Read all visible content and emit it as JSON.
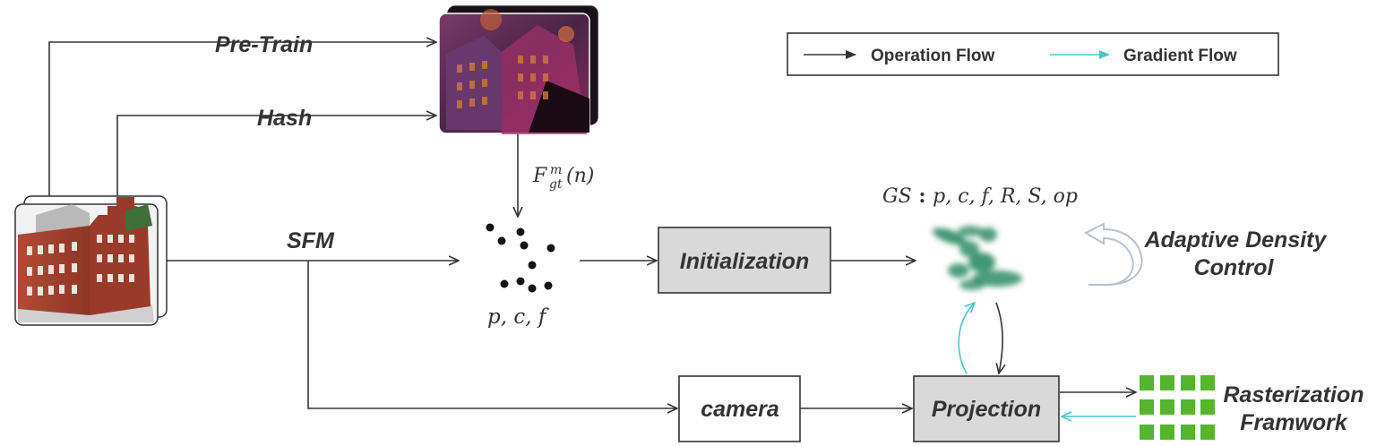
{
  "legend": {
    "operation_flow": "Operation  Flow",
    "gradient_flow": "Gradient  Flow"
  },
  "edge_labels": {
    "pre_train": "Pre-Train",
    "hash": "Hash",
    "sfm": "SFM",
    "feature_map": "F",
    "feature_map_sup": "m",
    "feature_map_sub": "gt",
    "feature_map_arg": "(n)"
  },
  "nodes": {
    "points_label": "p, c, f",
    "initialization": "Initialization",
    "gs_prefix": "GS",
    "gs_sep": " : ",
    "gs_params": "p, c, f, R, S, op",
    "adaptive_line1": "Adaptive Density",
    "adaptive_line2": "Control",
    "camera": "camera",
    "projection": "Projection",
    "raster_line1": "Rasterization",
    "raster_line2": "Framwork"
  },
  "colors": {
    "operation_flow": "#333333",
    "gradient_flow": "#4cc4c8",
    "box_fill": "#d9d9d9",
    "gaussian": "#2e8b67",
    "raster_block": "#55b52c",
    "feature_image": "#5a2a52",
    "building_brick": "#a53f2f"
  },
  "icons": {
    "multi_view_images": "building-photo-stack-icon",
    "feature_images": "feature-map-stack-icon",
    "gaussians": "gaussian-splats-icon",
    "adaptive_loop": "curved-loop-arrow-icon",
    "raster_grid": "raster-grid-icon"
  }
}
